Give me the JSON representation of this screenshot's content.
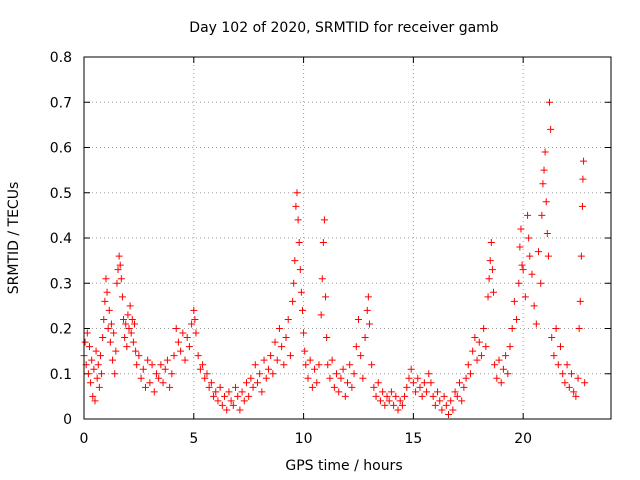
{
  "chart_data": {
    "type": "scatter",
    "title": "Day 102 of 2020, SRMTID for receiver gamb",
    "xlabel": "GPS time / hours",
    "ylabel": "SRMTID / TECUs",
    "xlim": [
      0,
      24
    ],
    "ylim": [
      0,
      0.8
    ],
    "xticks": [
      0,
      5,
      10,
      15,
      20
    ],
    "xtick_labels": [
      "0",
      "5",
      "10",
      "15",
      "20"
    ],
    "yticks": [
      0,
      0.1,
      0.2,
      0.3,
      0.4,
      0.5,
      0.6,
      0.7,
      0.8
    ],
    "ytick_labels": [
      "0",
      "0.1",
      "0.2",
      "0.3",
      "0.4",
      "0.5",
      "0.6",
      "0.7",
      "0.8"
    ],
    "grid": true,
    "marker": "plus",
    "color": "#ff0000",
    "series": [
      {
        "name": "SRMTID",
        "points": [
          [
            0.0,
            0.14
          ],
          [
            0.05,
            0.17
          ],
          [
            0.1,
            0.12
          ],
          [
            0.15,
            0.19
          ],
          [
            0.2,
            0.1
          ],
          [
            0.25,
            0.16
          ],
          [
            0.3,
            0.08
          ],
          [
            0.35,
            0.13
          ],
          [
            0.4,
            0.05
          ],
          [
            0.45,
            0.11
          ],
          [
            0.5,
            0.04
          ],
          [
            0.55,
            0.15
          ],
          [
            0.6,
            0.09
          ],
          [
            0.65,
            0.12
          ],
          [
            0.7,
            0.07
          ],
          [
            0.75,
            0.14
          ],
          [
            0.8,
            0.1
          ],
          [
            0.85,
            0.18
          ],
          [
            0.9,
            0.22
          ],
          [
            0.95,
            0.26
          ],
          [
            1.0,
            0.31
          ],
          [
            1.05,
            0.28
          ],
          [
            1.1,
            0.2
          ],
          [
            1.15,
            0.24
          ],
          [
            1.2,
            0.17
          ],
          [
            1.25,
            0.21
          ],
          [
            1.3,
            0.13
          ],
          [
            1.35,
            0.19
          ],
          [
            1.4,
            0.1
          ],
          [
            1.45,
            0.15
          ],
          [
            1.5,
            0.3
          ],
          [
            1.55,
            0.33
          ],
          [
            1.6,
            0.36
          ],
          [
            1.65,
            0.34
          ],
          [
            1.7,
            0.31
          ],
          [
            1.75,
            0.27
          ],
          [
            1.8,
            0.22
          ],
          [
            1.85,
            0.18
          ],
          [
            1.9,
            0.21
          ],
          [
            1.95,
            0.16
          ],
          [
            2.0,
            0.23
          ],
          [
            2.05,
            0.2
          ],
          [
            2.1,
            0.25
          ],
          [
            2.15,
            0.19
          ],
          [
            2.2,
            0.22
          ],
          [
            2.25,
            0.17
          ],
          [
            2.3,
            0.21
          ],
          [
            2.35,
            0.15
          ],
          [
            2.4,
            0.12
          ],
          [
            2.5,
            0.14
          ],
          [
            2.6,
            0.09
          ],
          [
            2.7,
            0.11
          ],
          [
            2.8,
            0.07
          ],
          [
            2.9,
            0.13
          ],
          [
            3.0,
            0.08
          ],
          [
            3.1,
            0.12
          ],
          [
            3.2,
            0.06
          ],
          [
            3.3,
            0.1
          ],
          [
            3.4,
            0.09
          ],
          [
            3.5,
            0.12
          ],
          [
            3.6,
            0.08
          ],
          [
            3.7,
            0.11
          ],
          [
            3.8,
            0.13
          ],
          [
            3.9,
            0.07
          ],
          [
            4.0,
            0.1
          ],
          [
            4.1,
            0.14
          ],
          [
            4.2,
            0.2
          ],
          [
            4.3,
            0.17
          ],
          [
            4.4,
            0.15
          ],
          [
            4.5,
            0.19
          ],
          [
            4.6,
            0.13
          ],
          [
            4.7,
            0.18
          ],
          [
            4.8,
            0.16
          ],
          [
            4.9,
            0.21
          ],
          [
            5.0,
            0.24
          ],
          [
            5.05,
            0.22
          ],
          [
            5.1,
            0.19
          ],
          [
            5.2,
            0.14
          ],
          [
            5.3,
            0.11
          ],
          [
            5.4,
            0.12
          ],
          [
            5.5,
            0.09
          ],
          [
            5.6,
            0.1
          ],
          [
            5.7,
            0.07
          ],
          [
            5.8,
            0.08
          ],
          [
            5.9,
            0.05
          ],
          [
            6.0,
            0.06
          ],
          [
            6.1,
            0.04
          ],
          [
            6.2,
            0.07
          ],
          [
            6.3,
            0.03
          ],
          [
            6.4,
            0.05
          ],
          [
            6.5,
            0.02
          ],
          [
            6.6,
            0.06
          ],
          [
            6.7,
            0.04
          ],
          [
            6.8,
            0.03
          ],
          [
            6.9,
            0.07
          ],
          [
            7.0,
            0.05
          ],
          [
            7.1,
            0.02
          ],
          [
            7.2,
            0.06
          ],
          [
            7.3,
            0.04
          ],
          [
            7.4,
            0.08
          ],
          [
            7.5,
            0.05
          ],
          [
            7.6,
            0.09
          ],
          [
            7.7,
            0.07
          ],
          [
            7.8,
            0.12
          ],
          [
            7.9,
            0.08
          ],
          [
            8.0,
            0.1
          ],
          [
            8.1,
            0.06
          ],
          [
            8.2,
            0.13
          ],
          [
            8.3,
            0.09
          ],
          [
            8.4,
            0.11
          ],
          [
            8.5,
            0.14
          ],
          [
            8.6,
            0.1
          ],
          [
            8.7,
            0.17
          ],
          [
            8.8,
            0.13
          ],
          [
            8.9,
            0.2
          ],
          [
            9.0,
            0.16
          ],
          [
            9.1,
            0.12
          ],
          [
            9.2,
            0.18
          ],
          [
            9.3,
            0.22
          ],
          [
            9.4,
            0.14
          ],
          [
            9.5,
            0.26
          ],
          [
            9.55,
            0.3
          ],
          [
            9.6,
            0.35
          ],
          [
            9.65,
            0.47
          ],
          [
            9.7,
            0.5
          ],
          [
            9.75,
            0.44
          ],
          [
            9.8,
            0.39
          ],
          [
            9.85,
            0.33
          ],
          [
            9.9,
            0.28
          ],
          [
            9.95,
            0.24
          ],
          [
            10.0,
            0.19
          ],
          [
            10.05,
            0.15
          ],
          [
            10.1,
            0.12
          ],
          [
            10.2,
            0.09
          ],
          [
            10.3,
            0.13
          ],
          [
            10.4,
            0.07
          ],
          [
            10.5,
            0.11
          ],
          [
            10.6,
            0.08
          ],
          [
            10.7,
            0.12
          ],
          [
            10.8,
            0.23
          ],
          [
            10.85,
            0.31
          ],
          [
            10.9,
            0.39
          ],
          [
            10.95,
            0.44
          ],
          [
            11.0,
            0.27
          ],
          [
            11.05,
            0.18
          ],
          [
            11.1,
            0.12
          ],
          [
            11.2,
            0.09
          ],
          [
            11.3,
            0.13
          ],
          [
            11.4,
            0.07
          ],
          [
            11.5,
            0.1
          ],
          [
            11.6,
            0.06
          ],
          [
            11.7,
            0.09
          ],
          [
            11.8,
            0.11
          ],
          [
            11.9,
            0.05
          ],
          [
            12.0,
            0.08
          ],
          [
            12.1,
            0.12
          ],
          [
            12.2,
            0.07
          ],
          [
            12.3,
            0.1
          ],
          [
            12.4,
            0.16
          ],
          [
            12.5,
            0.22
          ],
          [
            12.6,
            0.14
          ],
          [
            12.7,
            0.09
          ],
          [
            12.8,
            0.18
          ],
          [
            12.9,
            0.24
          ],
          [
            12.95,
            0.27
          ],
          [
            13.0,
            0.21
          ],
          [
            13.1,
            0.12
          ],
          [
            13.2,
            0.07
          ],
          [
            13.3,
            0.05
          ],
          [
            13.4,
            0.08
          ],
          [
            13.5,
            0.04
          ],
          [
            13.6,
            0.06
          ],
          [
            13.7,
            0.03
          ],
          [
            13.8,
            0.05
          ],
          [
            13.9,
            0.04
          ],
          [
            14.0,
            0.06
          ],
          [
            14.1,
            0.03
          ],
          [
            14.2,
            0.05
          ],
          [
            14.3,
            0.02
          ],
          [
            14.4,
            0.04
          ],
          [
            14.5,
            0.03
          ],
          [
            14.6,
            0.05
          ],
          [
            14.7,
            0.07
          ],
          [
            14.8,
            0.09
          ],
          [
            14.9,
            0.11
          ],
          [
            15.0,
            0.08
          ],
          [
            15.1,
            0.06
          ],
          [
            15.2,
            0.09
          ],
          [
            15.3,
            0.07
          ],
          [
            15.4,
            0.05
          ],
          [
            15.5,
            0.08
          ],
          [
            15.6,
            0.06
          ],
          [
            15.7,
            0.1
          ],
          [
            15.8,
            0.08
          ],
          [
            15.9,
            0.05
          ],
          [
            16.0,
            0.03
          ],
          [
            16.1,
            0.06
          ],
          [
            16.2,
            0.04
          ],
          [
            16.3,
            0.02
          ],
          [
            16.4,
            0.05
          ],
          [
            16.5,
            0.03
          ],
          [
            16.6,
            0.01
          ],
          [
            16.7,
            0.04
          ],
          [
            16.8,
            0.02
          ],
          [
            16.9,
            0.06
          ],
          [
            17.0,
            0.05
          ],
          [
            17.1,
            0.08
          ],
          [
            17.2,
            0.04
          ],
          [
            17.3,
            0.07
          ],
          [
            17.4,
            0.09
          ],
          [
            17.5,
            0.12
          ],
          [
            17.6,
            0.1
          ],
          [
            17.7,
            0.15
          ],
          [
            17.8,
            0.18
          ],
          [
            17.9,
            0.13
          ],
          [
            18.0,
            0.17
          ],
          [
            18.1,
            0.14
          ],
          [
            18.2,
            0.2
          ],
          [
            18.3,
            0.16
          ],
          [
            18.4,
            0.27
          ],
          [
            18.45,
            0.31
          ],
          [
            18.5,
            0.35
          ],
          [
            18.55,
            0.39
          ],
          [
            18.6,
            0.33
          ],
          [
            18.65,
            0.28
          ],
          [
            18.7,
            0.12
          ],
          [
            18.8,
            0.09
          ],
          [
            18.9,
            0.13
          ],
          [
            19.0,
            0.08
          ],
          [
            19.1,
            0.11
          ],
          [
            19.2,
            0.14
          ],
          [
            19.3,
            0.1
          ],
          [
            19.4,
            0.16
          ],
          [
            19.5,
            0.2
          ],
          [
            19.6,
            0.26
          ],
          [
            19.7,
            0.22
          ],
          [
            19.8,
            0.3
          ],
          [
            19.85,
            0.38
          ],
          [
            19.9,
            0.42
          ],
          [
            19.95,
            0.34
          ],
          [
            20.0,
            0.33
          ],
          [
            20.1,
            0.27
          ],
          [
            20.2,
            0.45
          ],
          [
            20.25,
            0.4
          ],
          [
            20.3,
            0.36
          ],
          [
            20.4,
            0.32
          ],
          [
            20.5,
            0.25
          ],
          [
            20.6,
            0.21
          ],
          [
            20.7,
            0.37
          ],
          [
            20.8,
            0.3
          ],
          [
            20.85,
            0.45
          ],
          [
            20.9,
            0.52
          ],
          [
            20.95,
            0.55
          ],
          [
            21.0,
            0.59
          ],
          [
            21.05,
            0.48
          ],
          [
            21.1,
            0.41
          ],
          [
            21.15,
            0.36
          ],
          [
            21.2,
            0.7
          ],
          [
            21.25,
            0.64
          ],
          [
            21.3,
            0.18
          ],
          [
            21.4,
            0.14
          ],
          [
            21.5,
            0.2
          ],
          [
            21.6,
            0.12
          ],
          [
            21.7,
            0.16
          ],
          [
            21.8,
            0.1
          ],
          [
            21.9,
            0.08
          ],
          [
            22.0,
            0.12
          ],
          [
            22.1,
            0.07
          ],
          [
            22.2,
            0.1
          ],
          [
            22.3,
            0.06
          ],
          [
            22.4,
            0.05
          ],
          [
            22.5,
            0.09
          ],
          [
            22.55,
            0.2
          ],
          [
            22.6,
            0.26
          ],
          [
            22.65,
            0.36
          ],
          [
            22.7,
            0.47
          ],
          [
            22.72,
            0.53
          ],
          [
            22.75,
            0.57
          ],
          [
            22.8,
            0.08
          ]
        ]
      }
    ]
  }
}
